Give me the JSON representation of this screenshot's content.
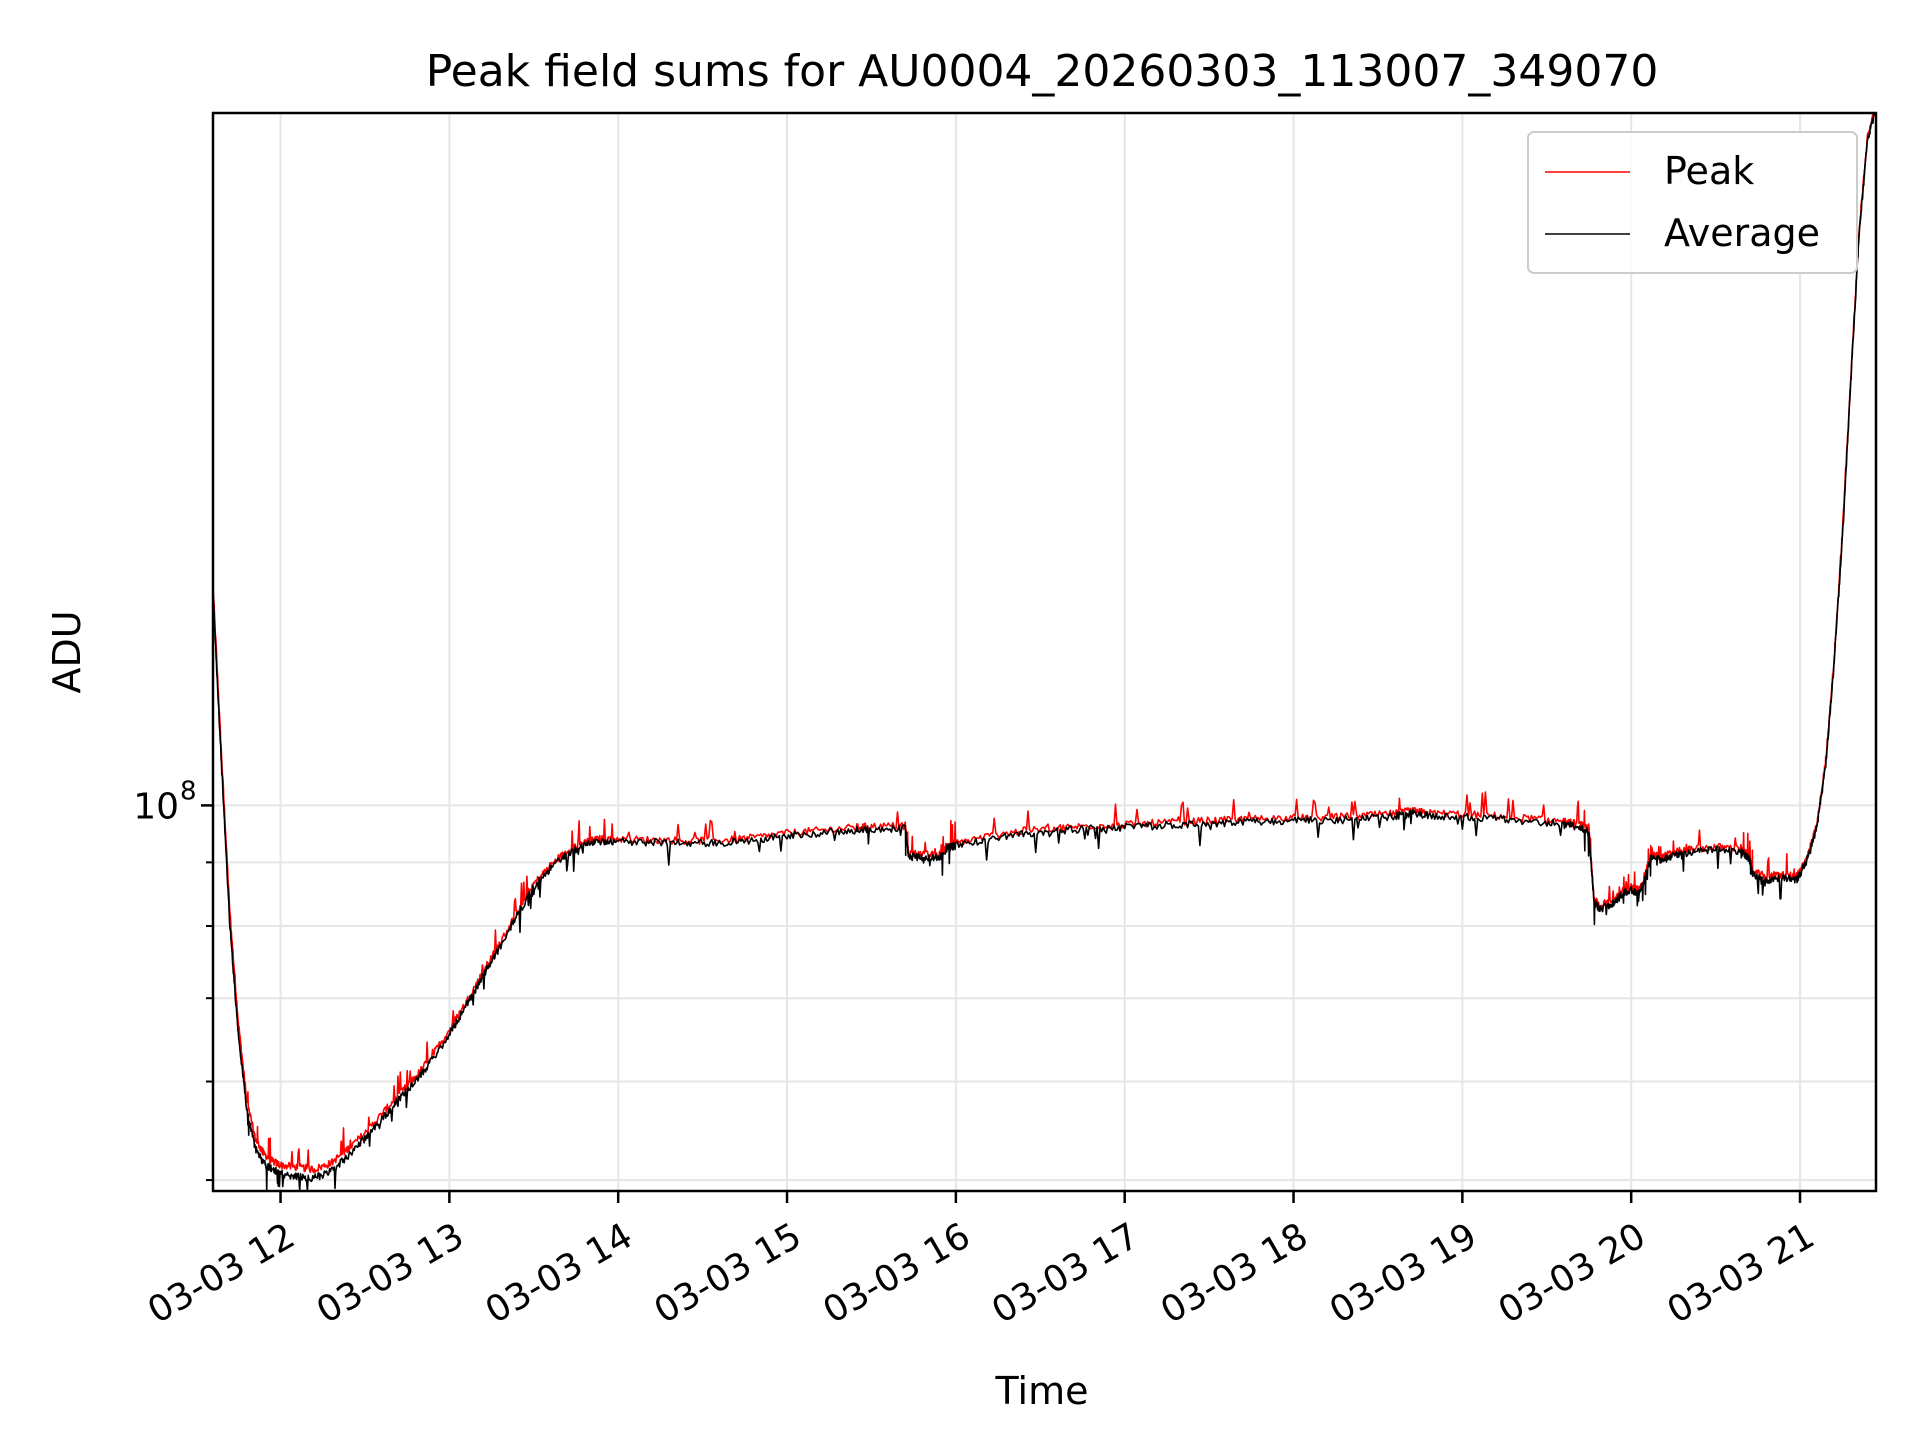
{
  "chart_data": {
    "type": "line",
    "title": "Peak field sums for AU0004_20260303_113007_349070",
    "xlabel": "Time",
    "ylabel": "ADU",
    "yscale": "log",
    "ylim": [
      49000000,
      360000000
    ],
    "xlim": [
      11.6,
      21.45
    ],
    "x_ticks": [
      12,
      13,
      14,
      15,
      16,
      17,
      18,
      19,
      20,
      21
    ],
    "x_tick_labels": [
      "03-03 12",
      "03-03 13",
      "03-03 14",
      "03-03 15",
      "03-03 16",
      "03-03 17",
      "03-03 18",
      "03-03 19",
      "03-03 20",
      "03-03 21"
    ],
    "y_major_ticks": [
      100000000
    ],
    "y_major_tick_labels": [
      "10"
    ],
    "y_major_tick_exponent": "8",
    "y_minor_ticks": [
      50000000,
      60000000,
      70000000,
      80000000,
      90000000
    ],
    "grid": true,
    "legend_position": "top-right",
    "series": [
      {
        "name": "Peak",
        "color": "#ff0000",
        "x": [
          11.6,
          11.65,
          11.7,
          11.75,
          11.8,
          11.85,
          11.9,
          11.95,
          12.0,
          12.1,
          12.2,
          12.3,
          12.4,
          12.5,
          12.6,
          12.7,
          12.8,
          12.9,
          13.0,
          13.1,
          13.2,
          13.3,
          13.4,
          13.5,
          13.6,
          13.7,
          13.8,
          13.9,
          14.0,
          14.2,
          14.4,
          14.6,
          14.8,
          15.0,
          15.2,
          15.4,
          15.5,
          15.7,
          15.72,
          15.8,
          15.9,
          15.95,
          16.0,
          16.2,
          16.4,
          16.6,
          16.8,
          17.0,
          17.2,
          17.4,
          17.6,
          17.8,
          18.0,
          18.2,
          18.4,
          18.6,
          18.7,
          18.8,
          19.0,
          19.2,
          19.4,
          19.6,
          19.7,
          19.75,
          19.78,
          19.82,
          19.9,
          19.95,
          20.0,
          20.05,
          20.1,
          20.12,
          20.18,
          20.25,
          20.35,
          20.5,
          20.65,
          20.7,
          20.72,
          20.8,
          20.9,
          20.98,
          21.0,
          21.05,
          21.1,
          21.15,
          21.2,
          21.25,
          21.3,
          21.35,
          21.4,
          21.45
        ],
        "values": [
          150000000,
          110000000,
          82000000,
          67000000,
          58000000,
          54000000,
          52500000,
          51800000,
          51400000,
          51200000,
          51000000,
          51600000,
          53000000,
          54500000,
          56500000,
          58500000,
          60500000,
          63000000,
          66000000,
          69500000,
          73500000,
          77500000,
          82000000,
          86500000,
          89500000,
          92000000,
          93500000,
          94000000,
          94000000,
          93800000,
          93700000,
          93700000,
          94200000,
          95000000,
          95500000,
          96000000,
          96200000,
          96300000,
          91500000,
          91300000,
          91200000,
          93000000,
          93300000,
          94500000,
          95400000,
          95900000,
          96300000,
          96500000,
          96800000,
          97100000,
          97300000,
          97600000,
          97700000,
          97800000,
          98100000,
          98500000,
          99000000,
          98600000,
          98400000,
          98100000,
          97600000,
          97100000,
          96500000,
          95500000,
          84000000,
          83000000,
          84000000,
          85500000,
          86000000,
          85500000,
          89500000,
          91500000,
          90800000,
          91700000,
          92200000,
          92600000,
          92400000,
          91000000,
          88500000,
          87600000,
          88000000,
          87700000,
          88500000,
          91500000,
          96500000,
          108000000,
          130000000,
          165000000,
          220000000,
          290000000,
          345000000,
          365000000
        ]
      },
      {
        "name": "Average",
        "color": "#000000",
        "x": [
          11.6,
          11.65,
          11.7,
          11.75,
          11.8,
          11.85,
          11.9,
          11.95,
          12.0,
          12.1,
          12.2,
          12.3,
          12.4,
          12.5,
          12.6,
          12.7,
          12.8,
          12.9,
          13.0,
          13.1,
          13.2,
          13.3,
          13.4,
          13.5,
          13.6,
          13.7,
          13.8,
          13.9,
          14.0,
          14.2,
          14.4,
          14.6,
          14.8,
          15.0,
          15.2,
          15.4,
          15.5,
          15.7,
          15.72,
          15.8,
          15.9,
          15.95,
          16.0,
          16.2,
          16.4,
          16.6,
          16.8,
          17.0,
          17.2,
          17.4,
          17.6,
          17.8,
          18.0,
          18.2,
          18.4,
          18.6,
          18.7,
          18.8,
          19.0,
          19.2,
          19.4,
          19.6,
          19.7,
          19.75,
          19.78,
          19.82,
          19.9,
          19.95,
          20.0,
          20.05,
          20.1,
          20.12,
          20.18,
          20.25,
          20.35,
          20.5,
          20.65,
          20.7,
          20.72,
          20.8,
          20.9,
          20.98,
          21.0,
          21.05,
          21.1,
          21.15,
          21.2,
          21.25,
          21.3,
          21.35,
          21.4,
          21.45
        ],
        "values": [
          148000000,
          108000000,
          80000000,
          65500000,
          57000000,
          53000000,
          51600000,
          51000000,
          50600000,
          50300000,
          50200000,
          50800000,
          52300000,
          54000000,
          56000000,
          58000000,
          60000000,
          62500000,
          65500000,
          69000000,
          73000000,
          77000000,
          81500000,
          86000000,
          89000000,
          91500000,
          93000000,
          93600000,
          93600000,
          93400000,
          93300000,
          93300000,
          93700000,
          94500000,
          95000000,
          95500000,
          95700000,
          95800000,
          91000000,
          90800000,
          90700000,
          92500000,
          92800000,
          94000000,
          94900000,
          95400000,
          95800000,
          96000000,
          96300000,
          96600000,
          96800000,
          97100000,
          97200000,
          97300000,
          97600000,
          98000000,
          98500000,
          98100000,
          97900000,
          97600000,
          97100000,
          96600000,
          96000000,
          95000000,
          83500000,
          82500000,
          83500000,
          85000000,
          85500000,
          85000000,
          89000000,
          91000000,
          90300000,
          91200000,
          91700000,
          92100000,
          91900000,
          90500000,
          88000000,
          87100000,
          87500000,
          87200000,
          88000000,
          91000000,
          96000000,
          107000000,
          129000000,
          163000000,
          218000000,
          288000000,
          343000000,
          363000000
        ]
      }
    ]
  }
}
